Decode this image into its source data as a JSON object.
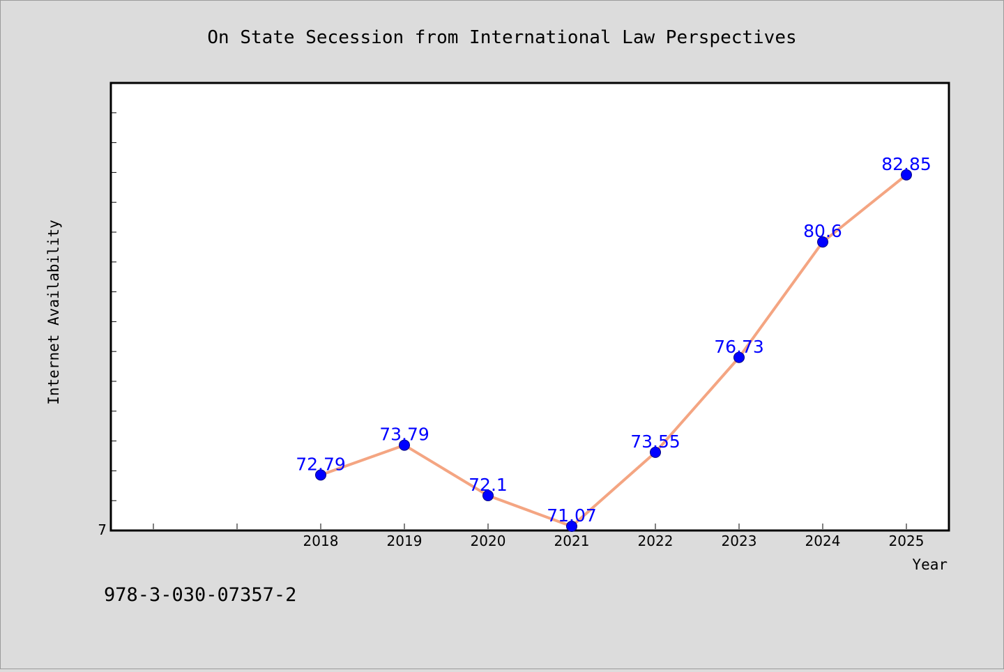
{
  "chart_data": {
    "type": "line",
    "title": "On State Secession from International Law Perspectives",
    "xlabel": "Year",
    "ylabel": "Internet Availability",
    "x": [
      2018,
      2019,
      2020,
      2021,
      2022,
      2023,
      2024,
      2025
    ],
    "x_tick_labels": [
      "2018",
      "2019",
      "2020",
      "2021",
      "2022",
      "2023",
      "2024",
      "2025"
    ],
    "series": [
      {
        "values": [
          72.79,
          73.79,
          72.1,
          71.07,
          73.55,
          76.73,
          80.6,
          82.85
        ],
        "labels": [
          "72.79",
          "73.79",
          "72.1",
          "71.07",
          "73.55",
          "76.73",
          "80.6",
          "82.85"
        ]
      }
    ],
    "y_tick_label": "7",
    "ylim": [
      70.93,
      85.93
    ],
    "grid": false,
    "legend": "none",
    "line_color": "#f4a582",
    "marker_color": "#0000ff",
    "label_color": "#0000ff"
  },
  "footer": {
    "isbn": "978-3-030-07357-2"
  }
}
